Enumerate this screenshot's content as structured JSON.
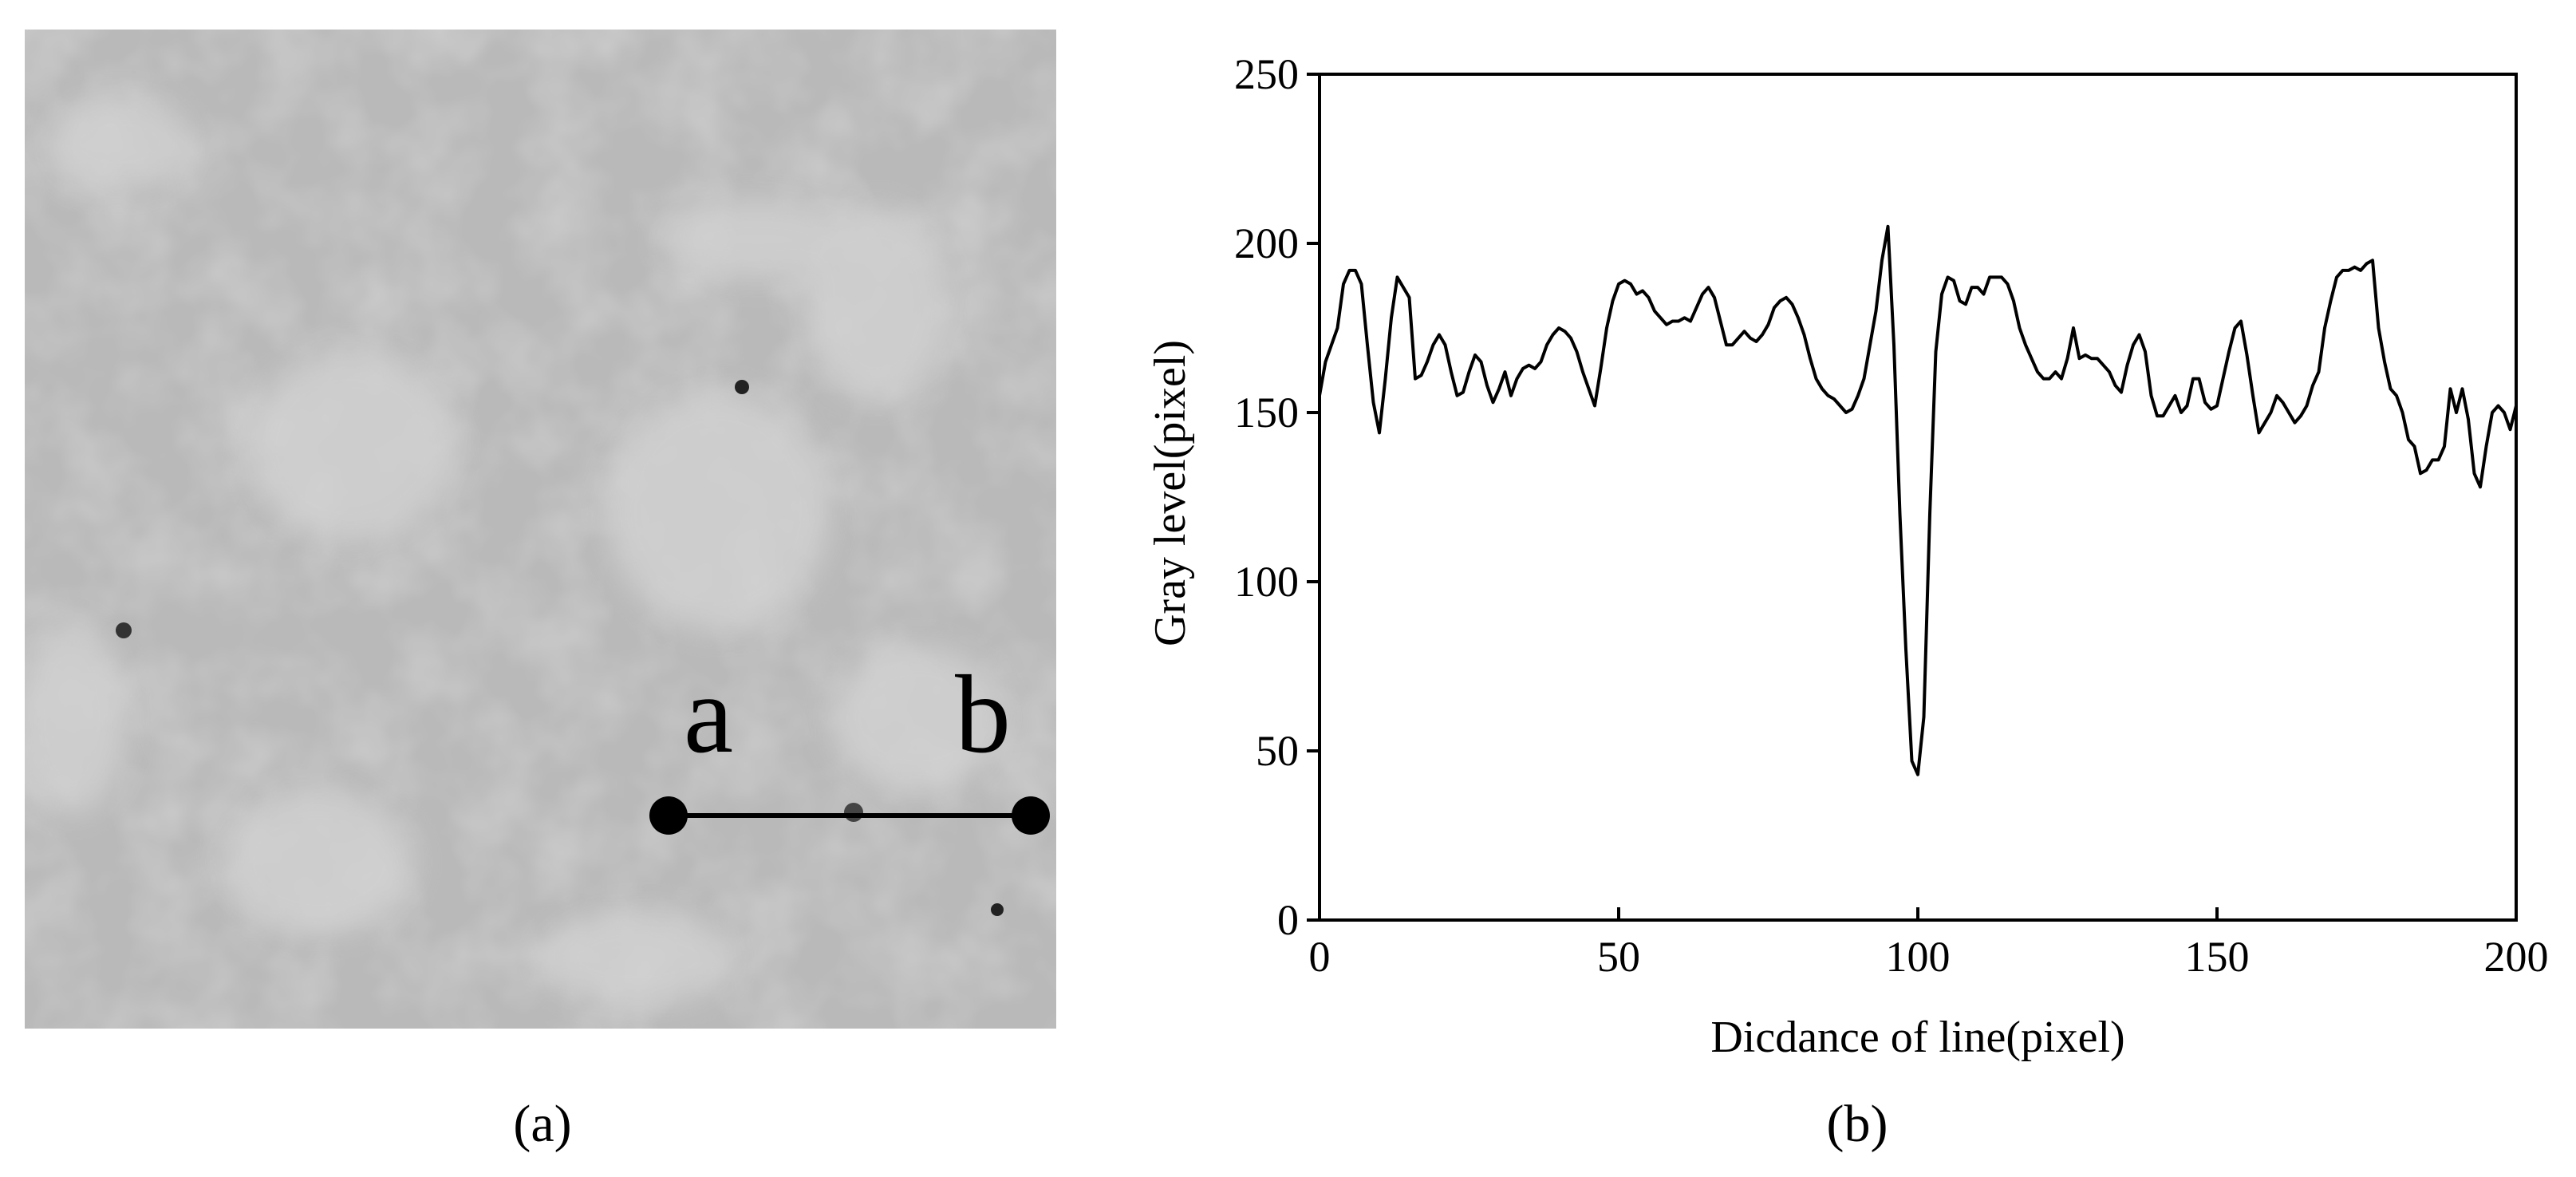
{
  "chart_data": {
    "type": "line",
    "x_label": "Dicdance of line(pixel)",
    "y_label": "Gray level(pixel)",
    "xlim": [
      0,
      200
    ],
    "xticks": [
      0,
      50,
      100,
      150,
      200
    ],
    "ylim": [
      0,
      250
    ],
    "yticks": [
      0,
      50,
      100,
      150,
      200,
      250
    ],
    "color": "#000000",
    "x": [
      0,
      1,
      2,
      3,
      4,
      5,
      6,
      7,
      8,
      9,
      10,
      11,
      12,
      13,
      14,
      15,
      16,
      17,
      18,
      19,
      20,
      21,
      22,
      23,
      24,
      25,
      26,
      27,
      28,
      29,
      30,
      31,
      32,
      33,
      34,
      35,
      36,
      37,
      38,
      39,
      40,
      41,
      42,
      43,
      44,
      45,
      46,
      47,
      48,
      49,
      50,
      51,
      52,
      53,
      54,
      55,
      56,
      57,
      58,
      59,
      60,
      61,
      62,
      63,
      64,
      65,
      66,
      67,
      68,
      69,
      70,
      71,
      72,
      73,
      74,
      75,
      76,
      77,
      78,
      79,
      80,
      81,
      82,
      83,
      84,
      85,
      86,
      87,
      88,
      89,
      90,
      91,
      92,
      93,
      94,
      95,
      96,
      97,
      98,
      99,
      100,
      101,
      102,
      103,
      104,
      105,
      106,
      107,
      108,
      109,
      110,
      111,
      112,
      113,
      114,
      115,
      116,
      117,
      118,
      119,
      120,
      121,
      122,
      123,
      124,
      125,
      126,
      127,
      128,
      129,
      130,
      131,
      132,
      133,
      134,
      135,
      136,
      137,
      138,
      139,
      140,
      141,
      142,
      143,
      144,
      145,
      146,
      147,
      148,
      149,
      150,
      151,
      152,
      153,
      154,
      155,
      156,
      157,
      158,
      159,
      160,
      161,
      162,
      163,
      164,
      165,
      166,
      167,
      168,
      169,
      170,
      171,
      172,
      173,
      174,
      175,
      176,
      177,
      178,
      179,
      180,
      181,
      182,
      183,
      184,
      185,
      186,
      187,
      188,
      189,
      190,
      191,
      192,
      193,
      194,
      195,
      196,
      197,
      198,
      199,
      200
    ],
    "values": [
      155,
      165,
      170,
      175,
      188,
      192,
      192,
      188,
      170,
      153,
      144,
      160,
      178,
      190,
      187,
      184,
      160,
      161,
      165,
      170,
      173,
      170,
      162,
      155,
      156,
      162,
      167,
      165,
      158,
      153,
      157,
      162,
      155,
      160,
      163,
      164,
      163,
      165,
      170,
      173,
      175,
      174,
      172,
      168,
      162,
      157,
      152,
      163,
      175,
      183,
      188,
      189,
      188,
      185,
      186,
      184,
      180,
      178,
      176,
      177,
      177,
      178,
      177,
      181,
      185,
      187,
      184,
      177,
      170,
      170,
      172,
      174,
      172,
      171,
      173,
      176,
      181,
      183,
      184,
      182,
      178,
      173,
      166,
      160,
      157,
      155,
      154,
      152,
      150,
      151,
      155,
      160,
      170,
      180,
      195,
      205,
      170,
      120,
      80,
      47,
      43,
      60,
      120,
      168,
      185,
      190,
      189,
      183,
      182,
      187,
      187,
      185,
      190,
      190,
      190,
      188,
      183,
      175,
      170,
      166,
      162,
      160,
      160,
      162,
      160,
      166,
      175,
      166,
      167,
      166,
      166,
      164,
      162,
      158,
      156,
      164,
      170,
      173,
      168,
      155,
      149,
      149,
      152,
      155,
      150,
      152,
      160,
      160,
      153,
      151,
      152,
      160,
      168,
      175,
      177,
      167,
      155,
      144,
      147,
      150,
      155,
      153,
      150,
      147,
      149,
      152,
      158,
      162,
      175,
      183,
      190,
      192,
      192,
      193,
      192,
      194,
      195,
      175,
      165,
      157,
      155,
      150,
      142,
      140,
      132,
      133,
      136,
      136,
      140,
      157,
      150,
      157,
      148,
      132,
      128,
      140,
      150,
      152,
      150,
      145,
      152
    ]
  },
  "image_panel": {
    "point_a": "a",
    "point_b": "b"
  },
  "captions": [
    "(a)",
    "(b)"
  ]
}
